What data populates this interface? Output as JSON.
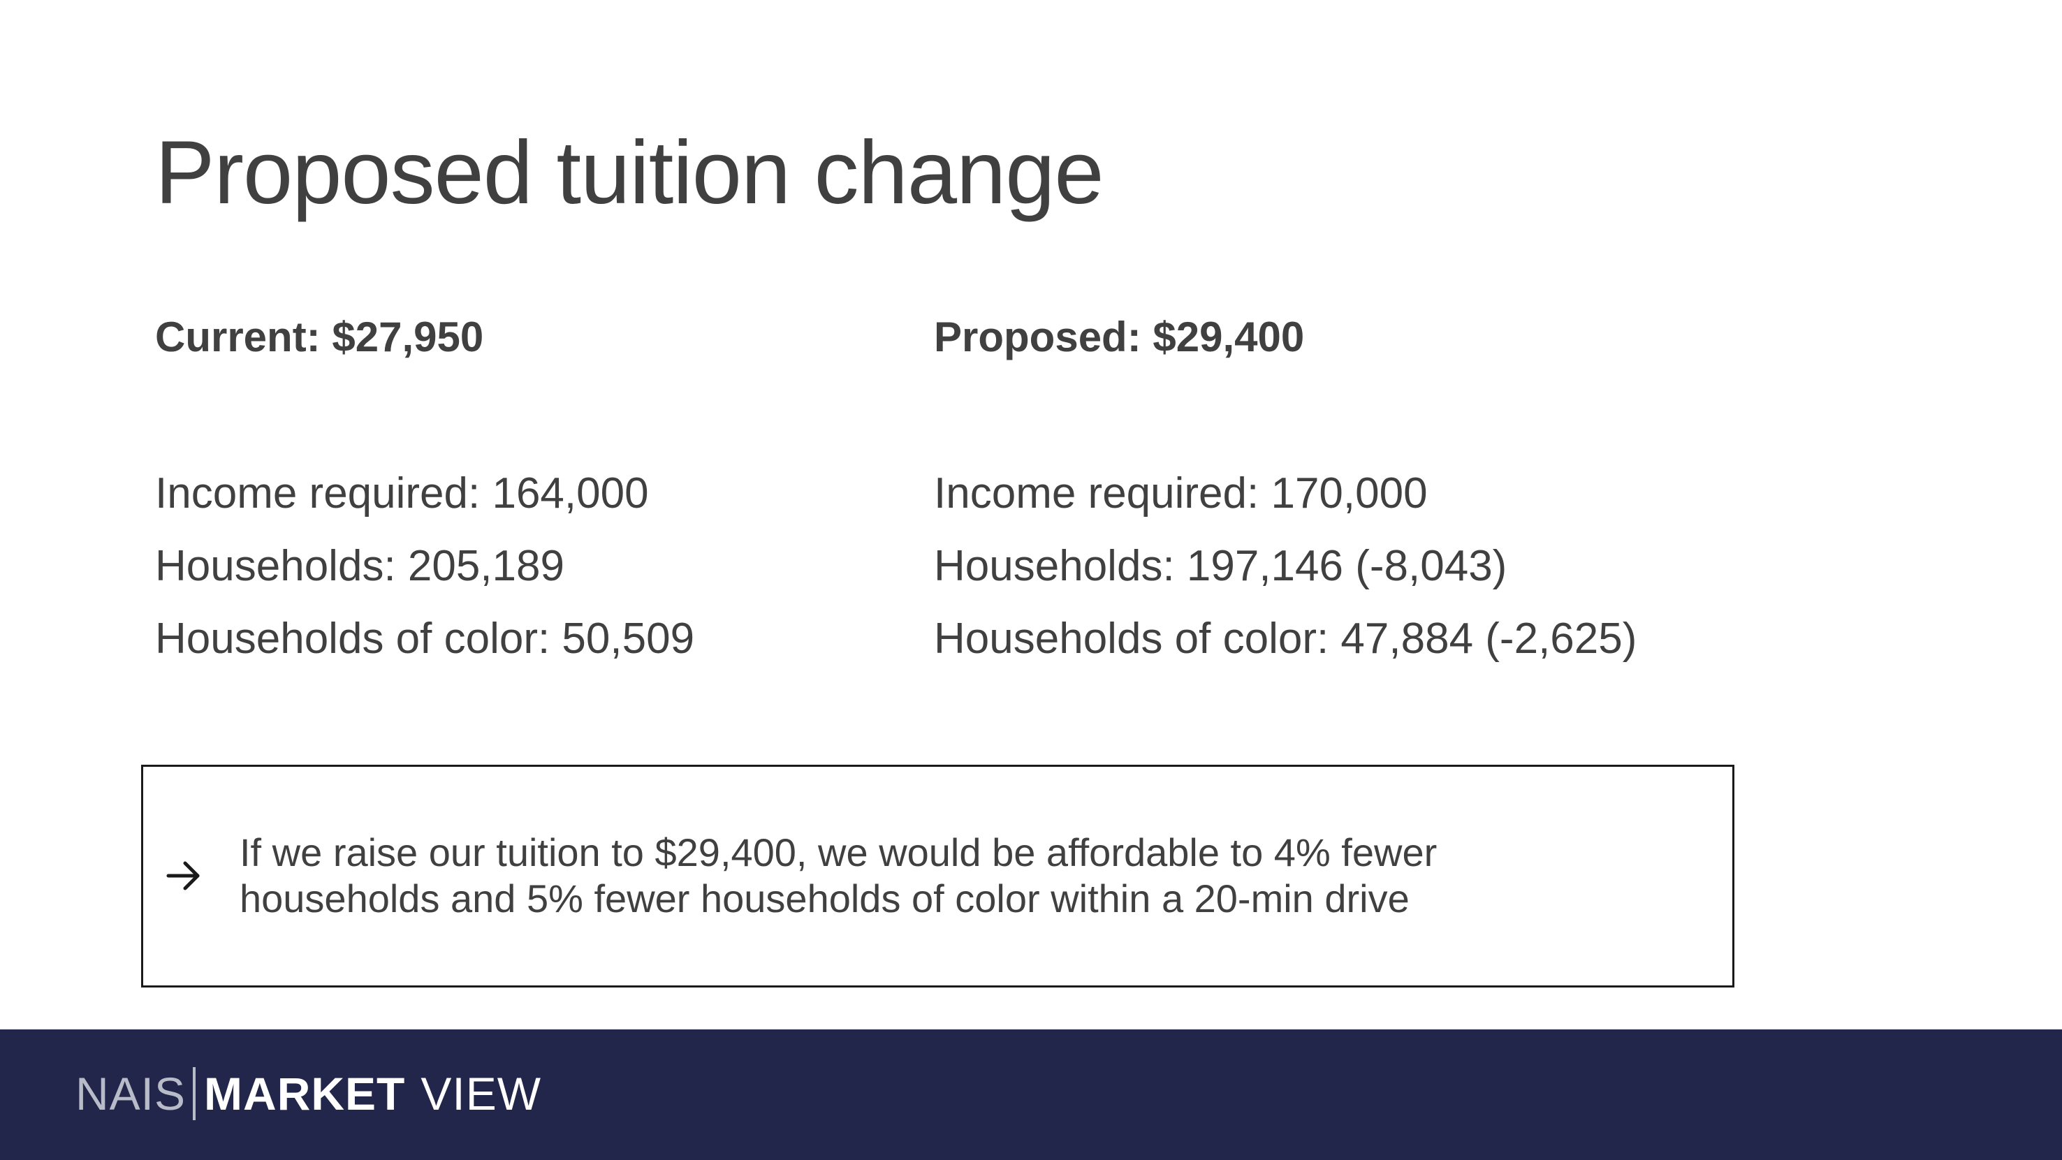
{
  "title": "Proposed tuition change",
  "current": {
    "heading": "Current: $27,950",
    "stats": [
      "Income required: 164,000",
      "Households: 205,189",
      "Households of color: 50,509"
    ]
  },
  "proposed": {
    "heading": "Proposed: $29,400",
    "stats": [
      "Income required: 170,000",
      "Households: 197,146 (-8,043)",
      "Households of color: 47,884 (-2,625)"
    ]
  },
  "callout": {
    "icon": "arrow-right-icon",
    "line1": "If we raise our tuition to $29,400, we would be affordable to 4% fewer",
    "line2": "households and 5% fewer households of color within a 20-min drive"
  },
  "footer": {
    "logo_part1": "NAIS",
    "logo_part2": "MARKET",
    "logo_part3": "VIEW",
    "background_color": "#22264a"
  }
}
